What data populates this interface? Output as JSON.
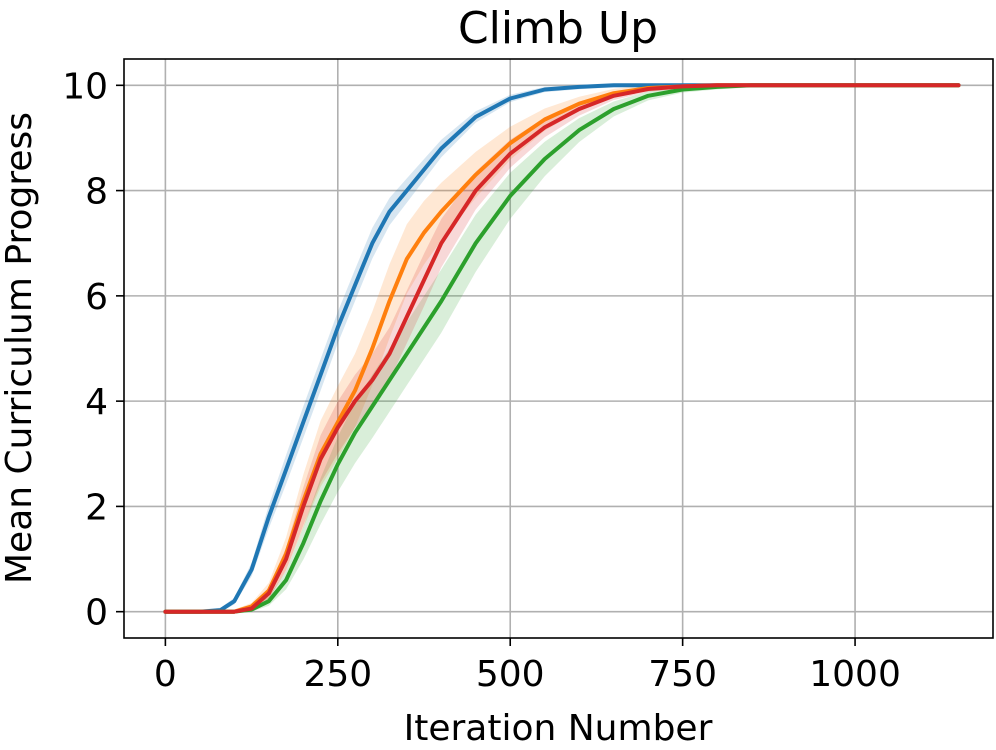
{
  "chart_data": {
    "type": "line",
    "title": "Climb Up",
    "xlabel": "Iteration Number",
    "ylabel": "Mean Curriculum Progress",
    "xlim": [
      -60,
      1200
    ],
    "ylim": [
      -0.5,
      10.5
    ],
    "xticks": [
      0,
      250,
      500,
      750,
      1000
    ],
    "yticks": [
      0,
      2,
      4,
      6,
      8,
      10
    ],
    "grid": true,
    "legend": "none",
    "series": [
      {
        "color": "#1f77b4",
        "x": [
          0,
          50,
          80,
          100,
          125,
          150,
          175,
          200,
          225,
          250,
          275,
          300,
          325,
          350,
          400,
          450,
          500,
          550,
          600,
          650,
          700,
          750,
          800,
          900,
          1000,
          1100,
          1150
        ],
        "y": [
          0,
          0,
          0.03,
          0.2,
          0.8,
          1.8,
          2.7,
          3.6,
          4.5,
          5.4,
          6.2,
          7.0,
          7.6,
          8.0,
          8.8,
          9.4,
          9.75,
          9.92,
          9.97,
          10,
          10,
          10,
          10,
          10,
          10,
          10,
          10
        ],
        "band": 0.15
      },
      {
        "color": "#ff7f0e",
        "x": [
          0,
          100,
          125,
          150,
          175,
          200,
          225,
          250,
          275,
          300,
          325,
          350,
          375,
          400,
          450,
          500,
          550,
          600,
          650,
          700,
          750,
          800,
          850,
          900,
          1000,
          1100,
          1150
        ],
        "y": [
          0,
          0,
          0.1,
          0.4,
          1.1,
          2.1,
          3.0,
          3.6,
          4.2,
          5.0,
          5.9,
          6.7,
          7.2,
          7.6,
          8.3,
          8.9,
          9.35,
          9.65,
          9.85,
          9.95,
          9.98,
          10,
          10,
          10,
          10,
          10,
          10
        ],
        "band": 0.35
      },
      {
        "color": "#2ca02c",
        "x": [
          0,
          100,
          125,
          150,
          175,
          200,
          225,
          250,
          275,
          300,
          325,
          350,
          400,
          450,
          500,
          550,
          600,
          650,
          700,
          750,
          800,
          850,
          900,
          1000,
          1100,
          1150
        ],
        "y": [
          0,
          0,
          0.04,
          0.2,
          0.6,
          1.3,
          2.1,
          2.8,
          3.4,
          3.9,
          4.4,
          4.9,
          5.9,
          7.0,
          7.9,
          8.6,
          9.15,
          9.55,
          9.8,
          9.92,
          9.97,
          10,
          10,
          10,
          10,
          10
        ],
        "band": 0.3
      },
      {
        "color": "#d62728",
        "x": [
          0,
          100,
          125,
          150,
          175,
          200,
          225,
          250,
          275,
          300,
          325,
          350,
          375,
          400,
          450,
          500,
          550,
          600,
          650,
          700,
          750,
          800,
          850,
          900,
          1000,
          1100,
          1150
        ],
        "y": [
          0,
          0,
          0.06,
          0.35,
          1.0,
          2.0,
          2.9,
          3.5,
          4.0,
          4.4,
          4.9,
          5.6,
          6.3,
          7.0,
          8.0,
          8.7,
          9.2,
          9.55,
          9.8,
          9.93,
          9.98,
          10,
          10,
          10,
          10,
          10,
          10
        ],
        "band": 0.25
      }
    ]
  }
}
